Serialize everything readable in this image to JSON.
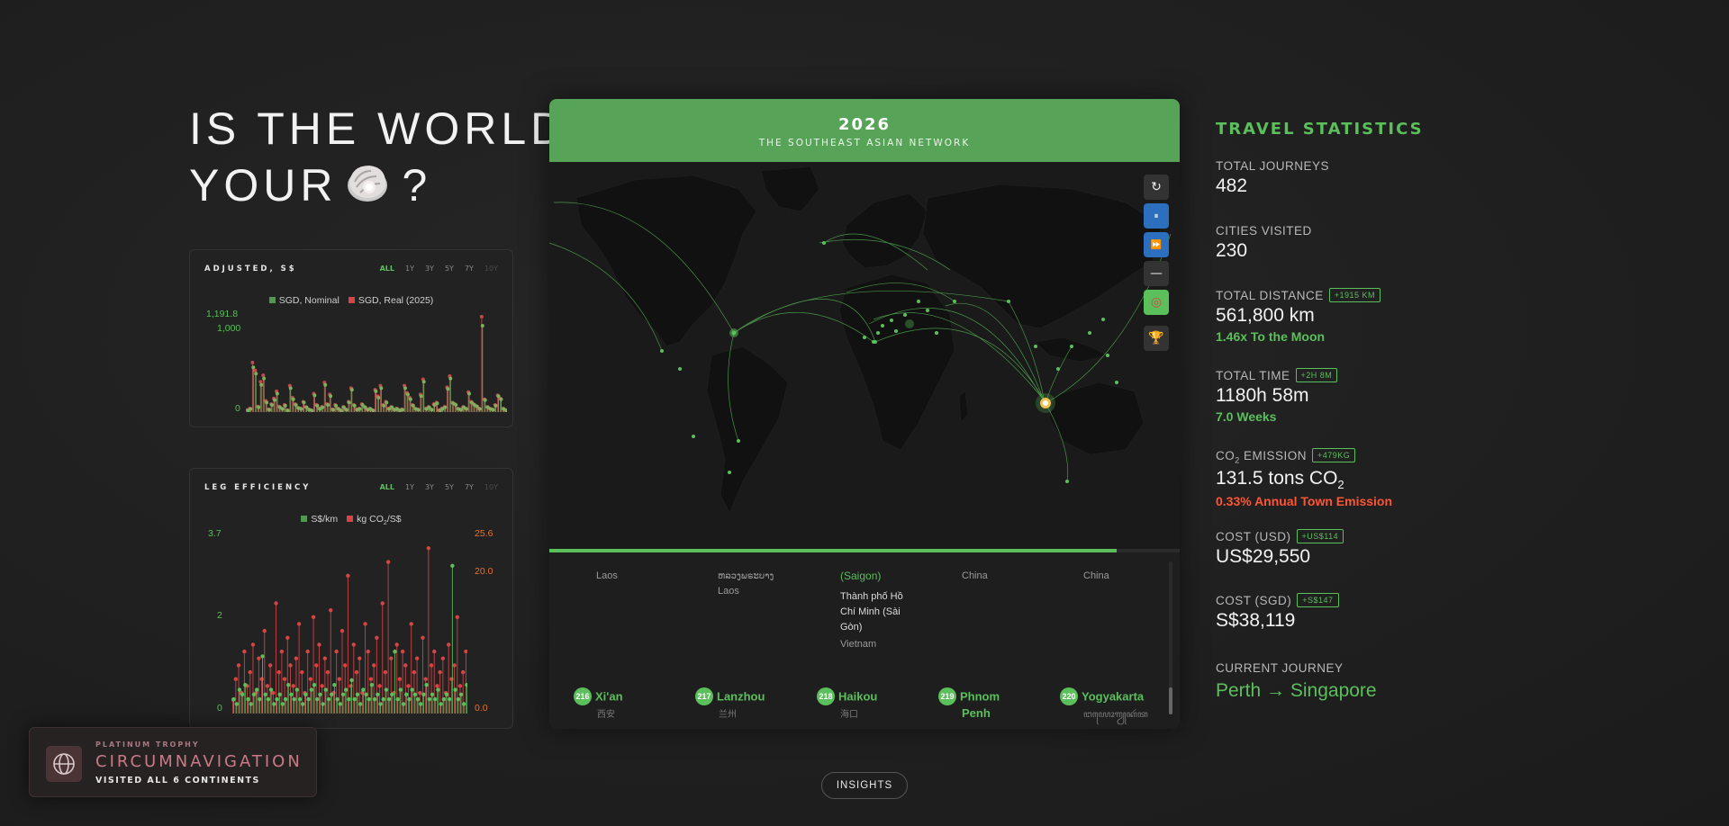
{
  "hero": {
    "line1": "IS THE WORLD",
    "line2": "YOUR",
    "question": "?"
  },
  "cost_card": {
    "title": "ADJUSTED, S$",
    "tabs": [
      "ALL",
      "1Y",
      "3Y",
      "5Y",
      "7Y",
      "10Y"
    ],
    "active_tab": "ALL",
    "legend": [
      {
        "name": "SGD, Nominal",
        "color": "#4f9a4f"
      },
      {
        "name": "SGD, Real (2025)",
        "color": "#d64545"
      }
    ],
    "y_labels": [
      "1,191.8",
      "1,000",
      "0"
    ]
  },
  "eff_card": {
    "title": "LEG EFFICIENCY",
    "tabs": [
      "ALL",
      "1Y",
      "3Y",
      "5Y",
      "7Y",
      "10Y"
    ],
    "active_tab": "ALL",
    "legend": [
      {
        "name": "S$/km",
        "color": "#4f9a4f"
      },
      {
        "name": "kg CO",
        "sub": "2",
        "tail": "/S$",
        "color": "#d64545"
      }
    ],
    "left_labels": [
      "3.7",
      "2",
      "0"
    ],
    "right_labels": [
      "25.6",
      "20.0",
      "0.0"
    ]
  },
  "chart_data": [
    {
      "type": "bar",
      "title": "ADJUSTED, S$",
      "series": [
        {
          "name": "SGD, Nominal",
          "values": [
            20,
            40,
            560,
            480,
            60,
            340,
            420,
            120,
            30,
            90,
            150,
            230,
            60,
            40,
            80,
            20,
            300,
            160,
            90,
            50,
            40,
            120,
            60,
            30,
            20,
            210,
            80,
            40,
            60,
            340,
            90,
            200,
            30,
            80,
            40,
            20,
            60,
            30,
            120,
            280,
            80,
            30,
            40,
            90,
            60,
            30,
            40,
            20,
            260,
            180,
            300,
            80,
            120,
            40,
            60,
            30,
            40,
            20,
            30,
            300,
            220,
            160,
            80,
            40,
            30,
            200,
            380,
            40,
            60,
            30,
            90,
            110,
            20,
            40,
            60,
            290,
            420,
            110,
            90,
            40,
            30,
            60,
            40,
            230,
            120,
            90,
            70,
            40,
            1080,
            150,
            60,
            40,
            30,
            80,
            200,
            160,
            40,
            20
          ]
        },
        {
          "name": "SGD, Real (2025)",
          "values": [
            25,
            45,
            620,
            520,
            70,
            380,
            460,
            140,
            35,
            100,
            170,
            260,
            70,
            45,
            90,
            25,
            330,
            180,
            100,
            55,
            45,
            130,
            65,
            35,
            25,
            230,
            90,
            45,
            65,
            370,
            100,
            220,
            35,
            90,
            45,
            25,
            65,
            35,
            130,
            300,
            90,
            35,
            45,
            100,
            65,
            35,
            45,
            25,
            280,
            200,
            330,
            90,
            130,
            45,
            65,
            35,
            45,
            25,
            35,
            330,
            240,
            180,
            90,
            45,
            35,
            220,
            410,
            45,
            65,
            35,
            100,
            120,
            25,
            45,
            65,
            310,
            450,
            120,
            100,
            45,
            35,
            65,
            45,
            250,
            130,
            100,
            75,
            45,
            1191.8,
            160,
            65,
            45,
            35,
            90,
            210,
            170,
            45,
            25
          ]
        }
      ],
      "ylim": [
        0,
        1191.8
      ]
    },
    {
      "type": "bar",
      "title": "LEG EFFICIENCY",
      "series": [
        {
          "name": "S$/km",
          "values": [
            0.3,
            0.2,
            0.5,
            0.4,
            0.6,
            0.3,
            0.2,
            0.4,
            0.5,
            0.3,
            1.2,
            0.4,
            0.3,
            0.5,
            0.2,
            0.3,
            0.4,
            0.2,
            0.3,
            0.6,
            0.4,
            0.3,
            0.5,
            0.3,
            0.2,
            0.4,
            0.3,
            0.5,
            0.6,
            0.3,
            0.4,
            0.2,
            0.5,
            0.3,
            0.4,
            0.6,
            0.3,
            0.2,
            0.4,
            0.5,
            0.3,
            0.7,
            0.3,
            0.4,
            0.2,
            0.5,
            0.4,
            0.3,
            0.6,
            0.3,
            0.4,
            0.2,
            0.3,
            0.5,
            0.3,
            0.4,
            1.3,
            0.3,
            0.5,
            0.2,
            0.4,
            0.3,
            0.5,
            0.4,
            0.3,
            0.2,
            0.4,
            0.6,
            0.3,
            0.4,
            0.3,
            0.5,
            0.2,
            0.3,
            0.4,
            0.3,
            3.1,
            0.5,
            0.3,
            0.4,
            0.2,
            0.6
          ]
        },
        {
          "name": "kg CO2/S$",
          "values": [
            2,
            5,
            7,
            3,
            9,
            4,
            6,
            10,
            3,
            8,
            5,
            12,
            4,
            7,
            3,
            16,
            6,
            9,
            5,
            11,
            7,
            4,
            8,
            13,
            6,
            3,
            9,
            5,
            14,
            7,
            10,
            4,
            8,
            6,
            15,
            3,
            9,
            5,
            12,
            7,
            20,
            4,
            10,
            6,
            8,
            3,
            13,
            9,
            5,
            7,
            11,
            4,
            16,
            6,
            22,
            8,
            3,
            10,
            5,
            9,
            7,
            4,
            13,
            6,
            8,
            3,
            11,
            5,
            24,
            7,
            9,
            4,
            6,
            8,
            3,
            10,
            5,
            7,
            14,
            4,
            6,
            9
          ]
        }
      ],
      "ylim_left": [
        0,
        3.7
      ],
      "ylim_right": [
        0,
        25.6
      ]
    }
  ],
  "map": {
    "year": "2026",
    "subtitle": "THE SOUTHEAST ASIAN NETWORK",
    "progress": 0.9,
    "controls": [
      {
        "name": "restart-icon",
        "glyph": "↻"
      },
      {
        "name": "pause-icon",
        "glyph": "⏸"
      },
      {
        "name": "fast-forward-icon",
        "glyph": "⏩"
      },
      {
        "name": "line-toggle-icon",
        "glyph": "—"
      },
      {
        "name": "target-icon",
        "glyph": "◎"
      },
      {
        "name": "trophy-icon",
        "glyph": "🏆"
      }
    ]
  },
  "timeline": {
    "prev": [
      {
        "country": "Laos"
      },
      {
        "local": "ຫລວງພຣະບາງ",
        "country": "Laos"
      },
      {
        "alt": "(Saigon)",
        "local": "Thành phố Hồ Chí Minh (Sài Gòn)",
        "country": "Vietnam"
      },
      {
        "country": "China"
      },
      {
        "country": "China"
      }
    ],
    "items": [
      {
        "num": "216",
        "city": "Xi'an",
        "local": "西安"
      },
      {
        "num": "217",
        "city": "Lanzhou",
        "local": "兰州"
      },
      {
        "num": "218",
        "city": "Haikou",
        "local": "海口"
      },
      {
        "num": "219",
        "city": "Phnom",
        "city2": "Penh"
      },
      {
        "num": "220",
        "city": "Yogyakarta",
        "local": "ꦔꦪꦺꦴꦒꦾꦏꦂꦠ"
      }
    ]
  },
  "stats": {
    "title": "TRAVEL STATISTICS",
    "journeys_label": "TOTAL JOURNEYS",
    "journeys": "482",
    "cities_label": "CITIES VISITED",
    "cities": "230",
    "distance_label": "TOTAL DISTANCE",
    "distance_delta": "+1915 KM",
    "distance": "561,800 km",
    "distance_note": "1.46x To the Moon",
    "time_label": "TOTAL TIME",
    "time_delta": "+2H 8M",
    "time": "1180h 58m",
    "time_note": "7.0 Weeks",
    "co2_label_a": "CO",
    "co2_label_b": "2",
    "co2_label_c": " EMISSION",
    "co2_delta": "+479KG",
    "co2_a": "131.5 tons CO",
    "co2_b": "2",
    "co2_note": "0.33% Annual Town Emission",
    "usd_label": "COST (USD)",
    "usd_delta": "+US$114",
    "usd": "US$29,550",
    "sgd_label": "COST (SGD)",
    "sgd_delta": "+S$147",
    "sgd": "S$38,119",
    "current_label": "CURRENT JOURNEY",
    "current": "Perth → Singapore",
    "colors": {
      "accent": "#5bbf5b",
      "warning": "#ff5533"
    }
  },
  "trophy": {
    "kicker": "PLATINUM TROPHY",
    "title": "CIRCUMNAVIGATION",
    "desc": "VISITED ALL 6 CONTINENTS"
  },
  "insights_label": "INSIGHTS"
}
